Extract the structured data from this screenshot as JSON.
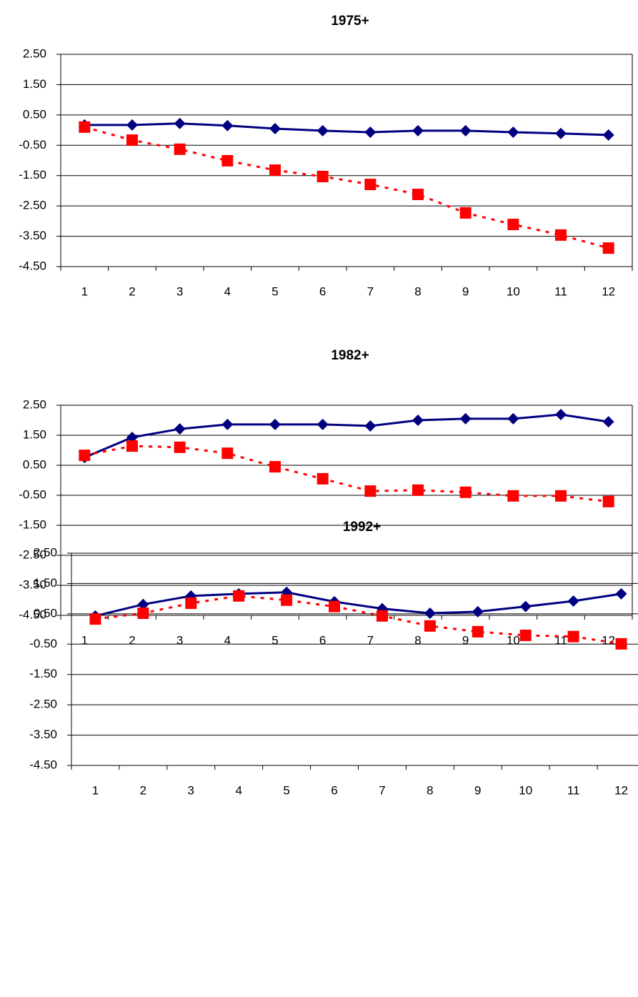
{
  "chart_data": [
    {
      "type": "line",
      "title": "1975+",
      "categories": [
        "1",
        "2",
        "3",
        "4",
        "5",
        "6",
        "7",
        "8",
        "9",
        "10",
        "11",
        "12"
      ],
      "series": [
        {
          "color": "#000080",
          "marker": "diamond",
          "dashed": false,
          "values": [
            0.17,
            0.17,
            0.22,
            0.15,
            0.05,
            -0.02,
            -0.07,
            -0.02,
            -0.02,
            -0.07,
            -0.11,
            -0.16
          ]
        },
        {
          "color": "#ff0000",
          "marker": "square",
          "dashed": true,
          "values": [
            0.1,
            -0.33,
            -0.63,
            -1.01,
            -1.32,
            -1.53,
            -1.79,
            -2.12,
            -2.73,
            -3.11,
            -3.46,
            -3.89
          ]
        }
      ],
      "ylim": [
        -4.5,
        2.5
      ],
      "yticks": [
        {
          "value": -4.5,
          "label": "-4.50"
        },
        {
          "value": -3.5,
          "label": "-3.50"
        },
        {
          "value": -2.5,
          "label": "-2.50"
        },
        {
          "value": -1.5,
          "label": "-1.50"
        },
        {
          "value": -0.5,
          "label": "-0.50"
        },
        {
          "value": 0.5,
          "label": "0.50"
        },
        {
          "value": 1.5,
          "label": "1.50"
        },
        {
          "value": 2.5,
          "label": "2.50"
        }
      ],
      "grid": true
    },
    {
      "type": "line",
      "title": "1982+",
      "categories": [
        "1",
        "2",
        "3",
        "4",
        "5",
        "6",
        "7",
        "8",
        "9",
        "10",
        "11",
        "12"
      ],
      "series": [
        {
          "color": "#000080",
          "marker": "diamond",
          "dashed": false,
          "values": [
            0.76,
            1.43,
            1.71,
            1.86,
            1.86,
            1.86,
            1.81,
            2.0,
            2.05,
            2.05,
            2.19,
            1.95
          ]
        },
        {
          "color": "#ff0000",
          "marker": "square",
          "dashed": true,
          "values": [
            0.83,
            1.14,
            1.1,
            0.9,
            0.45,
            0.05,
            -0.36,
            -0.33,
            -0.4,
            -0.52,
            -0.52,
            -0.71
          ]
        }
      ],
      "ylim": [
        -4.5,
        2.5
      ],
      "yticks": [
        {
          "value": -4.5,
          "label": "-4.50"
        },
        {
          "value": -3.5,
          "label": "-3.50"
        },
        {
          "value": -2.5,
          "label": "-2.50"
        },
        {
          "value": -1.5,
          "label": "-1.50"
        },
        {
          "value": -0.5,
          "label": "-0.50"
        },
        {
          "value": 0.5,
          "label": "0.50"
        },
        {
          "value": 1.5,
          "label": "1.50"
        },
        {
          "value": 2.5,
          "label": "2.50"
        }
      ],
      "grid": true
    },
    {
      "type": "line",
      "title": "1992+",
      "categories": [
        "1",
        "2",
        "3",
        "4",
        "5",
        "6",
        "7",
        "8",
        "9",
        "10",
        "11",
        "12"
      ],
      "series": [
        {
          "color": "#000080",
          "marker": "diamond",
          "dashed": false,
          "values": [
            0.43,
            0.81,
            1.09,
            1.16,
            1.21,
            0.9,
            0.67,
            0.52,
            0.57,
            0.74,
            0.92,
            1.16
          ]
        },
        {
          "color": "#ff0000",
          "marker": "square",
          "dashed": true,
          "values": [
            0.33,
            0.52,
            0.85,
            1.09,
            0.95,
            0.74,
            0.43,
            0.1,
            -0.09,
            -0.21,
            -0.25,
            -0.49
          ]
        }
      ],
      "ylim": [
        -4.5,
        2.5
      ],
      "yticks": [
        {
          "value": -4.5,
          "label": "-4.50"
        },
        {
          "value": -3.5,
          "label": "-3.50"
        },
        {
          "value": -2.5,
          "label": "-2.50"
        },
        {
          "value": -1.5,
          "label": "-1.50"
        },
        {
          "value": -0.5,
          "label": "-0.50"
        },
        {
          "value": 0.5,
          "label": "0.50"
        },
        {
          "value": 1.5,
          "label": "1.50"
        },
        {
          "value": 2.5,
          "label": "2.50"
        }
      ],
      "grid": true
    }
  ]
}
